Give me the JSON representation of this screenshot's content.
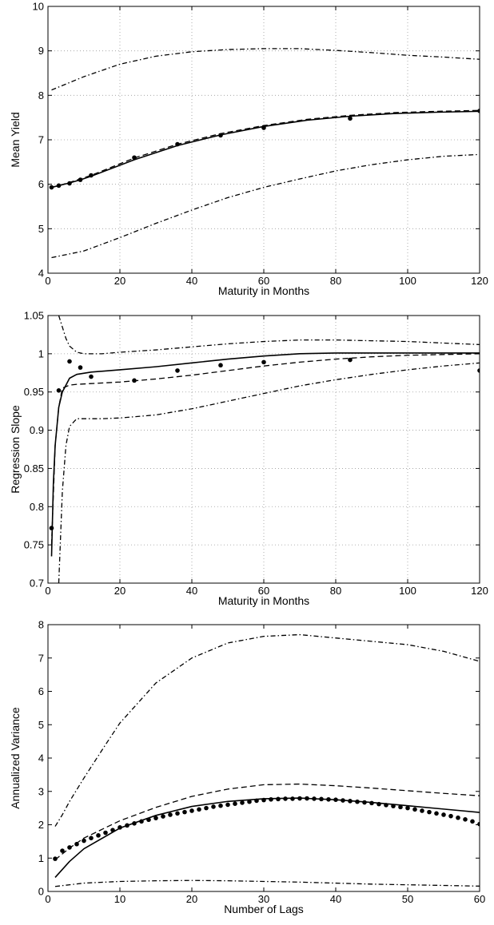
{
  "chart_data": [
    {
      "type": "line",
      "xlabel": "Maturity in Months",
      "ylabel": "Mean Yield",
      "xlim": [
        0,
        120
      ],
      "ylim": [
        4,
        10
      ],
      "xticks": [
        0,
        20,
        40,
        60,
        80,
        100,
        120
      ],
      "yticks": [
        4,
        5,
        6,
        7,
        8,
        9,
        10
      ],
      "grid": true,
      "series": [
        {
          "style": "solid",
          "color": "#000000",
          "x": [
            1,
            3,
            6,
            9,
            12,
            24,
            36,
            48,
            60,
            72,
            84,
            96,
            108,
            120
          ],
          "y": [
            5.93,
            5.97,
            6.03,
            6.1,
            6.18,
            6.55,
            6.87,
            7.11,
            7.3,
            7.44,
            7.53,
            7.59,
            7.62,
            7.64
          ]
        },
        {
          "style": "dashed",
          "color": "#000000",
          "x": [
            1,
            3,
            6,
            9,
            12,
            24,
            36,
            48,
            60,
            72,
            84,
            96,
            108,
            120
          ],
          "y": [
            5.93,
            5.97,
            6.04,
            6.12,
            6.2,
            6.59,
            6.9,
            7.14,
            7.32,
            7.46,
            7.55,
            7.61,
            7.64,
            7.66
          ]
        },
        {
          "style": "dashdot",
          "color": "#000000",
          "x": [
            1,
            10,
            20,
            30,
            40,
            50,
            60,
            70,
            80,
            90,
            100,
            110,
            120
          ],
          "y": [
            8.12,
            8.42,
            8.7,
            8.88,
            8.98,
            9.03,
            9.05,
            9.05,
            9.01,
            8.96,
            8.9,
            8.86,
            8.81
          ]
        },
        {
          "style": "dashdot",
          "color": "#000000",
          "x": [
            1,
            10,
            20,
            30,
            40,
            50,
            60,
            70,
            80,
            90,
            100,
            110,
            120
          ],
          "y": [
            4.35,
            4.5,
            4.8,
            5.12,
            5.42,
            5.7,
            5.93,
            6.12,
            6.3,
            6.44,
            6.55,
            6.63,
            6.67
          ]
        },
        {
          "style": "dots",
          "color": "#000000",
          "x": [
            1,
            3,
            6,
            9,
            12,
            24,
            36,
            48,
            60,
            84,
            120
          ],
          "y": [
            5.93,
            5.97,
            6.02,
            6.1,
            6.2,
            6.6,
            6.9,
            7.1,
            7.27,
            7.48,
            7.65
          ]
        }
      ]
    },
    {
      "type": "line",
      "xlabel": "Maturity in Months",
      "ylabel": "Regression Slope",
      "xlim": [
        0,
        120
      ],
      "ylim": [
        0.7,
        1.05
      ],
      "xticks": [
        0,
        20,
        40,
        60,
        80,
        100,
        120
      ],
      "yticks": [
        0.7,
        0.75,
        0.8,
        0.85,
        0.9,
        0.95,
        1,
        1.05
      ],
      "ytick_labels": [
        "0.7",
        "0.75",
        "0.8",
        "0.85",
        "0.9",
        "0.95",
        "1",
        "1.05"
      ],
      "grid": true,
      "series": [
        {
          "style": "solid",
          "color": "#000000",
          "x": [
            1,
            1.5,
            2,
            3,
            4,
            6,
            8,
            12,
            20,
            30,
            40,
            50,
            60,
            70,
            80,
            90,
            100,
            110,
            120
          ],
          "y": [
            0.735,
            0.83,
            0.88,
            0.93,
            0.95,
            0.968,
            0.973,
            0.976,
            0.979,
            0.983,
            0.988,
            0.993,
            0.997,
            1.0,
            1.001,
            1.001,
            1.001,
            1.001,
            1.001
          ]
        },
        {
          "style": "dashed",
          "color": "#000000",
          "x": [
            1,
            2,
            3,
            4,
            6,
            8,
            12,
            20,
            30,
            40,
            50,
            60,
            70,
            80,
            90,
            100,
            110,
            120
          ],
          "y": [
            0.75,
            0.88,
            0.93,
            0.955,
            0.959,
            0.96,
            0.961,
            0.963,
            0.967,
            0.972,
            0.978,
            0.984,
            0.989,
            0.993,
            0.996,
            0.998,
            0.999,
            1.0
          ]
        },
        {
          "style": "dashdot",
          "color": "#000000",
          "x": [
            3,
            4,
            5,
            6,
            8,
            10,
            15,
            20,
            30,
            40,
            50,
            60,
            70,
            80,
            90,
            100,
            110,
            120
          ],
          "y": [
            1.05,
            1.035,
            1.02,
            1.01,
            1.002,
            1.0,
            1.0,
            1.002,
            1.005,
            1.009,
            1.013,
            1.016,
            1.018,
            1.018,
            1.017,
            1.016,
            1.014,
            1.012
          ]
        },
        {
          "style": "dashdot",
          "color": "#000000",
          "x": [
            3,
            4,
            5,
            6,
            8,
            10,
            15,
            20,
            30,
            40,
            50,
            60,
            70,
            80,
            90,
            100,
            110,
            120
          ],
          "y": [
            0.7,
            0.82,
            0.88,
            0.905,
            0.915,
            0.915,
            0.915,
            0.916,
            0.92,
            0.928,
            0.938,
            0.948,
            0.958,
            0.966,
            0.973,
            0.979,
            0.984,
            0.988
          ]
        },
        {
          "style": "dots",
          "color": "#000000",
          "x": [
            1,
            3,
            6,
            9,
            12,
            24,
            36,
            48,
            60,
            84,
            120
          ],
          "y": [
            0.772,
            0.952,
            0.99,
            0.982,
            0.97,
            0.965,
            0.978,
            0.985,
            0.989,
            0.992,
            0.978
          ]
        }
      ]
    },
    {
      "type": "line",
      "xlabel": "Number of Lags",
      "ylabel": "Annualized Variance",
      "xlim": [
        0,
        60
      ],
      "ylim": [
        0,
        8
      ],
      "xticks": [
        0,
        10,
        20,
        30,
        40,
        50,
        60
      ],
      "yticks": [
        0,
        1,
        2,
        3,
        4,
        5,
        6,
        7,
        8
      ],
      "grid": false,
      "series": [
        {
          "style": "solid",
          "color": "#000000",
          "x": [
            1,
            3,
            5,
            10,
            15,
            20,
            25,
            30,
            35,
            40,
            45,
            50,
            55,
            60
          ],
          "y": [
            0.42,
            0.9,
            1.28,
            1.9,
            2.28,
            2.55,
            2.7,
            2.78,
            2.8,
            2.75,
            2.67,
            2.57,
            2.47,
            2.37
          ]
        },
        {
          "style": "dashed",
          "color": "#000000",
          "x": [
            1,
            3,
            5,
            10,
            15,
            20,
            25,
            30,
            35,
            40,
            45,
            50,
            55,
            60
          ],
          "y": [
            0.95,
            1.3,
            1.6,
            2.12,
            2.52,
            2.85,
            3.07,
            3.2,
            3.22,
            3.17,
            3.1,
            3.02,
            2.94,
            2.87
          ]
        },
        {
          "style": "dashdot",
          "color": "#000000",
          "x": [
            1,
            2,
            3,
            5,
            8,
            10,
            15,
            20,
            25,
            30,
            35,
            40,
            45,
            50,
            55,
            60
          ],
          "y": [
            1.95,
            2.3,
            2.7,
            3.4,
            4.4,
            5.05,
            6.25,
            7.0,
            7.45,
            7.65,
            7.7,
            7.6,
            7.5,
            7.4,
            7.2,
            6.9
          ]
        },
        {
          "style": "dashdot",
          "color": "#000000",
          "x": [
            1,
            5,
            10,
            15,
            20,
            25,
            30,
            35,
            40,
            45,
            50,
            55,
            60
          ],
          "y": [
            0.15,
            0.25,
            0.3,
            0.32,
            0.33,
            0.32,
            0.3,
            0.28,
            0.25,
            0.22,
            0.2,
            0.18,
            0.16
          ]
        },
        {
          "style": "dots",
          "color": "#000000",
          "x": [
            1,
            2,
            3,
            4,
            5,
            6,
            7,
            8,
            9,
            10,
            11,
            12,
            13,
            14,
            15,
            16,
            17,
            18,
            19,
            20,
            21,
            22,
            23,
            24,
            25,
            26,
            27,
            28,
            29,
            30,
            31,
            32,
            33,
            34,
            35,
            36,
            37,
            38,
            39,
            40,
            41,
            42,
            43,
            44,
            45,
            46,
            47,
            48,
            49,
            50,
            51,
            52,
            53,
            54,
            55,
            56,
            57,
            58,
            59,
            60
          ],
          "y": [
            0.98,
            1.22,
            1.32,
            1.42,
            1.52,
            1.6,
            1.68,
            1.76,
            1.84,
            1.92,
            1.98,
            2.04,
            2.1,
            2.15,
            2.2,
            2.25,
            2.3,
            2.34,
            2.38,
            2.42,
            2.46,
            2.5,
            2.54,
            2.57,
            2.6,
            2.63,
            2.66,
            2.69,
            2.72,
            2.74,
            2.76,
            2.77,
            2.78,
            2.78,
            2.79,
            2.79,
            2.78,
            2.77,
            2.76,
            2.75,
            2.73,
            2.71,
            2.69,
            2.67,
            2.65,
            2.62,
            2.59,
            2.56,
            2.53,
            2.5,
            2.46,
            2.42,
            2.38,
            2.34,
            2.3,
            2.26,
            2.21,
            2.16,
            2.1,
            2.02
          ]
        }
      ]
    }
  ]
}
